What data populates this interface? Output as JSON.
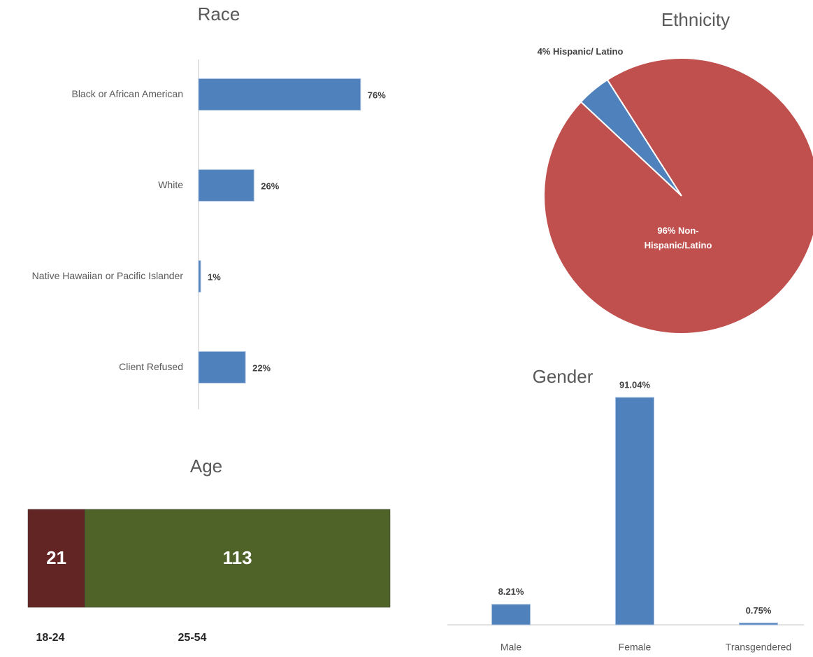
{
  "chart_data": [
    {
      "type": "bar",
      "orientation": "horizontal",
      "title": "Race",
      "categories": [
        "Black or African American",
        "White",
        "Native Hawaiian or Pacific Islander",
        "Client Refused"
      ],
      "values": [
        76,
        26,
        1,
        22
      ],
      "value_labels": [
        "76%",
        "26%",
        "1%",
        "22%"
      ],
      "color": "#4f81bd"
    },
    {
      "type": "pie",
      "title": "Ethnicity",
      "categories": [
        "Hispanic/ Latino",
        "Non-Hispanic/Latino"
      ],
      "values": [
        4,
        96
      ],
      "value_labels": [
        "4%",
        "96%"
      ],
      "colors": [
        "#4f81bd",
        "#c0504d"
      ]
    },
    {
      "type": "bar",
      "orientation": "horizontal",
      "stacked": true,
      "title": "Age",
      "series": [
        {
          "name": "18-24",
          "color": "#632523",
          "values": [
            21
          ]
        },
        {
          "name": "25-54",
          "color": "#4f6228",
          "values": [
            113
          ]
        }
      ]
    },
    {
      "type": "bar",
      "orientation": "vertical",
      "title": "Gender",
      "categories": [
        "Male",
        "Female",
        "Transgendered"
      ],
      "values": [
        8.21,
        91.04,
        0.75
      ],
      "value_labels": [
        "8.21%",
        "91.04%",
        "0.75%"
      ],
      "color": "#4f81bd"
    }
  ]
}
